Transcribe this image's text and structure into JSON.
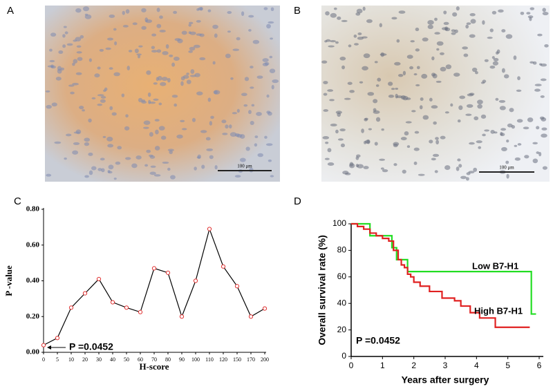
{
  "images": [
    {
      "panel": "A",
      "scale_bar": "100 μm"
    },
    {
      "panel": "B",
      "scale_bar": "100 μm"
    }
  ],
  "chart_data": [
    {
      "type": "line",
      "panel": "C",
      "categories": [
        "0",
        "5",
        "10",
        "20",
        "30",
        "40",
        "50",
        "60",
        "70",
        "80",
        "90",
        "100",
        "110",
        "120",
        "150",
        "170",
        "200"
      ],
      "values": [
        0.04,
        0.08,
        0.25,
        0.33,
        0.41,
        0.28,
        0.25,
        0.225,
        0.47,
        0.445,
        0.2,
        0.4,
        0.69,
        0.48,
        0.37,
        0.2,
        0.245
      ],
      "color": "#000000",
      "marker_color": "#e03030",
      "x_label": "H-score",
      "y_label": "P -value",
      "ylim": [
        0,
        0.8
      ],
      "yticks": [
        {
          "value": 0,
          "label": "0.00"
        },
        {
          "value": 0.2,
          "label": "0.20"
        },
        {
          "value": 0.4,
          "label": "0.40"
        },
        {
          "value": 0.6,
          "label": "0.60"
        },
        {
          "value": 0.8,
          "label": "0.80"
        }
      ],
      "annotation": "P =0.0452"
    },
    {
      "type": "step",
      "panel": "D",
      "x_label": "Years after surgery",
      "y_label": "Overall survival rate (%)",
      "xlim": [
        0,
        6
      ],
      "xticks": [
        0,
        1,
        2,
        3,
        4,
        5,
        6
      ],
      "ylim": [
        0,
        100
      ],
      "yticks": [
        0,
        20,
        40,
        60,
        80,
        100
      ],
      "series": [
        {
          "name": "Low B7-H1",
          "color": "#22dd22",
          "x": [
            0,
            0.6,
            1.3,
            1.45,
            1.8,
            5.75,
            5.9
          ],
          "values": [
            100,
            91,
            82,
            73,
            64,
            32,
            32
          ]
        },
        {
          "name": "High B7-H1",
          "color": "#e02020",
          "x": [
            0,
            0.2,
            0.4,
            0.6,
            0.8,
            1.0,
            1.2,
            1.35,
            1.5,
            1.6,
            1.7,
            1.8,
            1.9,
            2.0,
            2.2,
            2.5,
            2.9,
            3.3,
            3.5,
            3.8,
            4.1,
            4.6,
            5.7
          ],
          "values": [
            100,
            98,
            96,
            93,
            91,
            89,
            87,
            80,
            73,
            69,
            67,
            62,
            60,
            56,
            53,
            49,
            44,
            42,
            38,
            33,
            29,
            22,
            22
          ]
        }
      ],
      "annotation": "P =0.0452"
    }
  ]
}
